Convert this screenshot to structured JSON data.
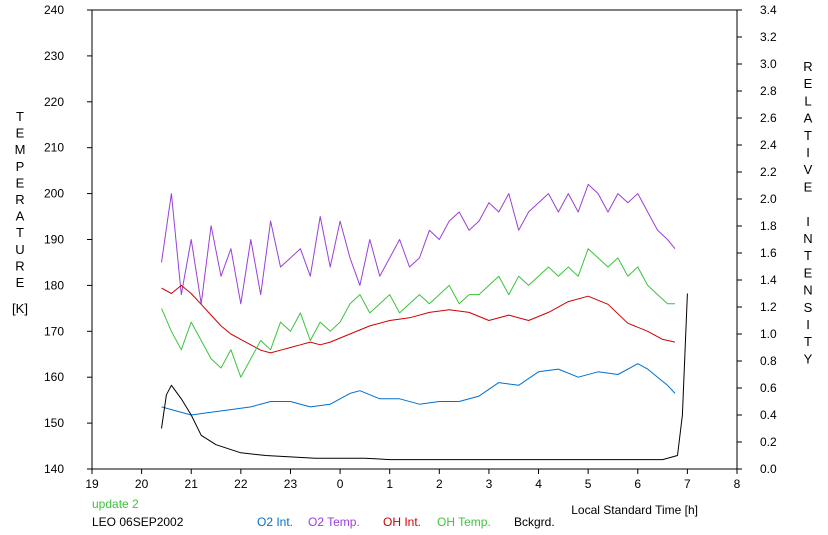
{
  "chart_data": {
    "type": "line",
    "xlabel": "Local Standard Time [h]",
    "ylabel_left": "TEMPERATURE",
    "ylabel_left_unit": "[K]",
    "ylabel_right": "RELATIVE INTENSITY",
    "x_tick_labels": [
      "19",
      "20",
      "21",
      "22",
      "23",
      "0",
      "1",
      "2",
      "3",
      "4",
      "5",
      "6",
      "7",
      "8"
    ],
    "xlim_hours_since_19": [
      0,
      13
    ],
    "ylim_left": [
      140,
      240
    ],
    "y_left_ticks": [
      140,
      150,
      160,
      170,
      180,
      190,
      200,
      210,
      220,
      230,
      240
    ],
    "ylim_right": [
      0.0,
      3.4
    ],
    "y_right_ticks": [
      "0.0",
      "0.2",
      "0.4",
      "0.6",
      "0.8",
      "1.0",
      "1.2",
      "1.4",
      "1.6",
      "1.8",
      "2.0",
      "2.2",
      "2.4",
      "2.6",
      "2.8",
      "3.0",
      "3.2",
      "3.4"
    ],
    "grid": false,
    "notes": [
      "update 2",
      "LEO 06SEP2002"
    ],
    "series": [
      {
        "name": "O2 Int.",
        "color": "#0070d0",
        "axis": "right",
        "x": [
          "20.4",
          "20.6",
          "21.0",
          "21.4",
          "21.8",
          "22.2",
          "22.6",
          "23.0",
          "23.4",
          "23.8",
          "0.2",
          "0.4",
          "0.8",
          "1.2",
          "1.6",
          "2.0",
          "2.4",
          "2.8",
          "3.2",
          "3.6",
          "4.0",
          "4.4",
          "4.8",
          "5.2",
          "5.6",
          "6.0",
          "6.2",
          "6.4",
          "6.6",
          "6.75"
        ],
        "values": [
          0.46,
          0.44,
          0.4,
          0.42,
          0.44,
          0.46,
          0.5,
          0.5,
          0.46,
          0.48,
          0.56,
          0.58,
          0.52,
          0.52,
          0.48,
          0.5,
          0.5,
          0.54,
          0.64,
          0.62,
          0.72,
          0.74,
          0.68,
          0.72,
          0.7,
          0.78,
          0.74,
          0.68,
          0.62,
          0.56
        ]
      },
      {
        "name": "O2 Temp.",
        "color": "#9a40d8",
        "axis": "left",
        "x": [
          "20.4",
          "20.6",
          "20.8",
          "21.0",
          "21.2",
          "21.4",
          "21.6",
          "21.8",
          "22.0",
          "22.2",
          "22.4",
          "22.6",
          "22.8",
          "23.0",
          "23.2",
          "23.4",
          "23.6",
          "23.8",
          "0.0",
          "0.2",
          "0.4",
          "0.6",
          "0.8",
          "1.0",
          "1.2",
          "1.4",
          "1.6",
          "1.8",
          "2.0",
          "2.2",
          "2.4",
          "2.6",
          "2.8",
          "3.0",
          "3.2",
          "3.4",
          "3.6",
          "3.8",
          "4.0",
          "4.2",
          "4.4",
          "4.6",
          "4.8",
          "5.0",
          "5.2",
          "5.4",
          "5.6",
          "5.8",
          "6.0",
          "6.2",
          "6.4",
          "6.6",
          "6.75"
        ],
        "values": [
          185,
          200,
          178,
          190,
          176,
          193,
          182,
          188,
          176,
          190,
          178,
          194,
          184,
          186,
          188,
          182,
          195,
          184,
          194,
          186,
          180,
          190,
          182,
          186,
          190,
          184,
          186,
          192,
          190,
          194,
          196,
          192,
          194,
          198,
          196,
          200,
          192,
          196,
          198,
          200,
          196,
          200,
          196,
          202,
          200,
          196,
          200,
          198,
          200,
          196,
          192,
          190,
          188
        ]
      },
      {
        "name": "OH Int.",
        "color": "#d00000",
        "axis": "right",
        "x": [
          "20.4",
          "20.6",
          "20.8",
          "21.0",
          "21.2",
          "21.4",
          "21.6",
          "21.8",
          "22.0",
          "22.2",
          "22.4",
          "22.6",
          "22.8",
          "23.0",
          "23.2",
          "23.4",
          "23.6",
          "23.8",
          "0.2",
          "0.6",
          "1.0",
          "1.4",
          "1.8",
          "2.2",
          "2.6",
          "3.0",
          "3.4",
          "3.8",
          "4.2",
          "4.6",
          "5.0",
          "5.4",
          "5.8",
          "6.2",
          "6.5",
          "6.75"
        ],
        "values": [
          1.34,
          1.3,
          1.36,
          1.3,
          1.22,
          1.14,
          1.06,
          1.0,
          0.96,
          0.92,
          0.88,
          0.86,
          0.88,
          0.9,
          0.92,
          0.94,
          0.92,
          0.94,
          1.0,
          1.06,
          1.1,
          1.12,
          1.16,
          1.18,
          1.16,
          1.1,
          1.14,
          1.1,
          1.16,
          1.24,
          1.28,
          1.22,
          1.08,
          1.02,
          0.96,
          0.94
        ]
      },
      {
        "name": "OH Temp.",
        "color": "#3cc43c",
        "axis": "left",
        "x": [
          "20.4",
          "20.6",
          "20.8",
          "21.0",
          "21.2",
          "21.4",
          "21.6",
          "21.8",
          "22.0",
          "22.2",
          "22.4",
          "22.6",
          "22.8",
          "23.0",
          "23.2",
          "23.4",
          "23.6",
          "23.8",
          "0.0",
          "0.2",
          "0.4",
          "0.6",
          "0.8",
          "1.0",
          "1.2",
          "1.4",
          "1.6",
          "1.8",
          "2.0",
          "2.2",
          "2.4",
          "2.6",
          "2.8",
          "3.0",
          "3.2",
          "3.4",
          "3.6",
          "3.8",
          "4.0",
          "4.2",
          "4.4",
          "4.6",
          "4.8",
          "5.0",
          "5.2",
          "5.4",
          "5.6",
          "5.8",
          "6.0",
          "6.2",
          "6.4",
          "6.6",
          "6.75"
        ],
        "values": [
          175,
          170,
          166,
          172,
          168,
          164,
          162,
          166,
          160,
          164,
          168,
          166,
          172,
          170,
          174,
          168,
          172,
          170,
          172,
          176,
          178,
          174,
          176,
          178,
          174,
          176,
          178,
          176,
          178,
          180,
          176,
          178,
          178,
          180,
          182,
          178,
          182,
          180,
          182,
          184,
          182,
          184,
          182,
          188,
          186,
          184,
          186,
          182,
          184,
          180,
          178,
          176,
          176
        ]
      },
      {
        "name": "Bckgrd.",
        "color": "#000000",
        "axis": "right",
        "x": [
          "20.4",
          "20.5",
          "20.6",
          "20.8",
          "21.0",
          "21.2",
          "21.5",
          "22.0",
          "22.5",
          "23.0",
          "23.5",
          "0.0",
          "0.5",
          "1.0",
          "2.0",
          "3.0",
          "4.0",
          "5.0",
          "6.0",
          "6.5",
          "6.8",
          "6.9",
          "7.0"
        ],
        "values": [
          0.3,
          0.55,
          0.62,
          0.52,
          0.4,
          0.25,
          0.18,
          0.12,
          0.1,
          0.09,
          0.08,
          0.08,
          0.08,
          0.07,
          0.07,
          0.07,
          0.07,
          0.07,
          0.07,
          0.07,
          0.1,
          0.4,
          1.3
        ]
      }
    ]
  },
  "legend": {
    "note1": "update 2",
    "note1_color": "#3cc43c",
    "note2": "LEO 06SEP2002",
    "items": [
      "O2 Int.",
      "O2 Temp.",
      "OH Int.",
      "OH Temp.",
      "Bckgrd."
    ]
  }
}
